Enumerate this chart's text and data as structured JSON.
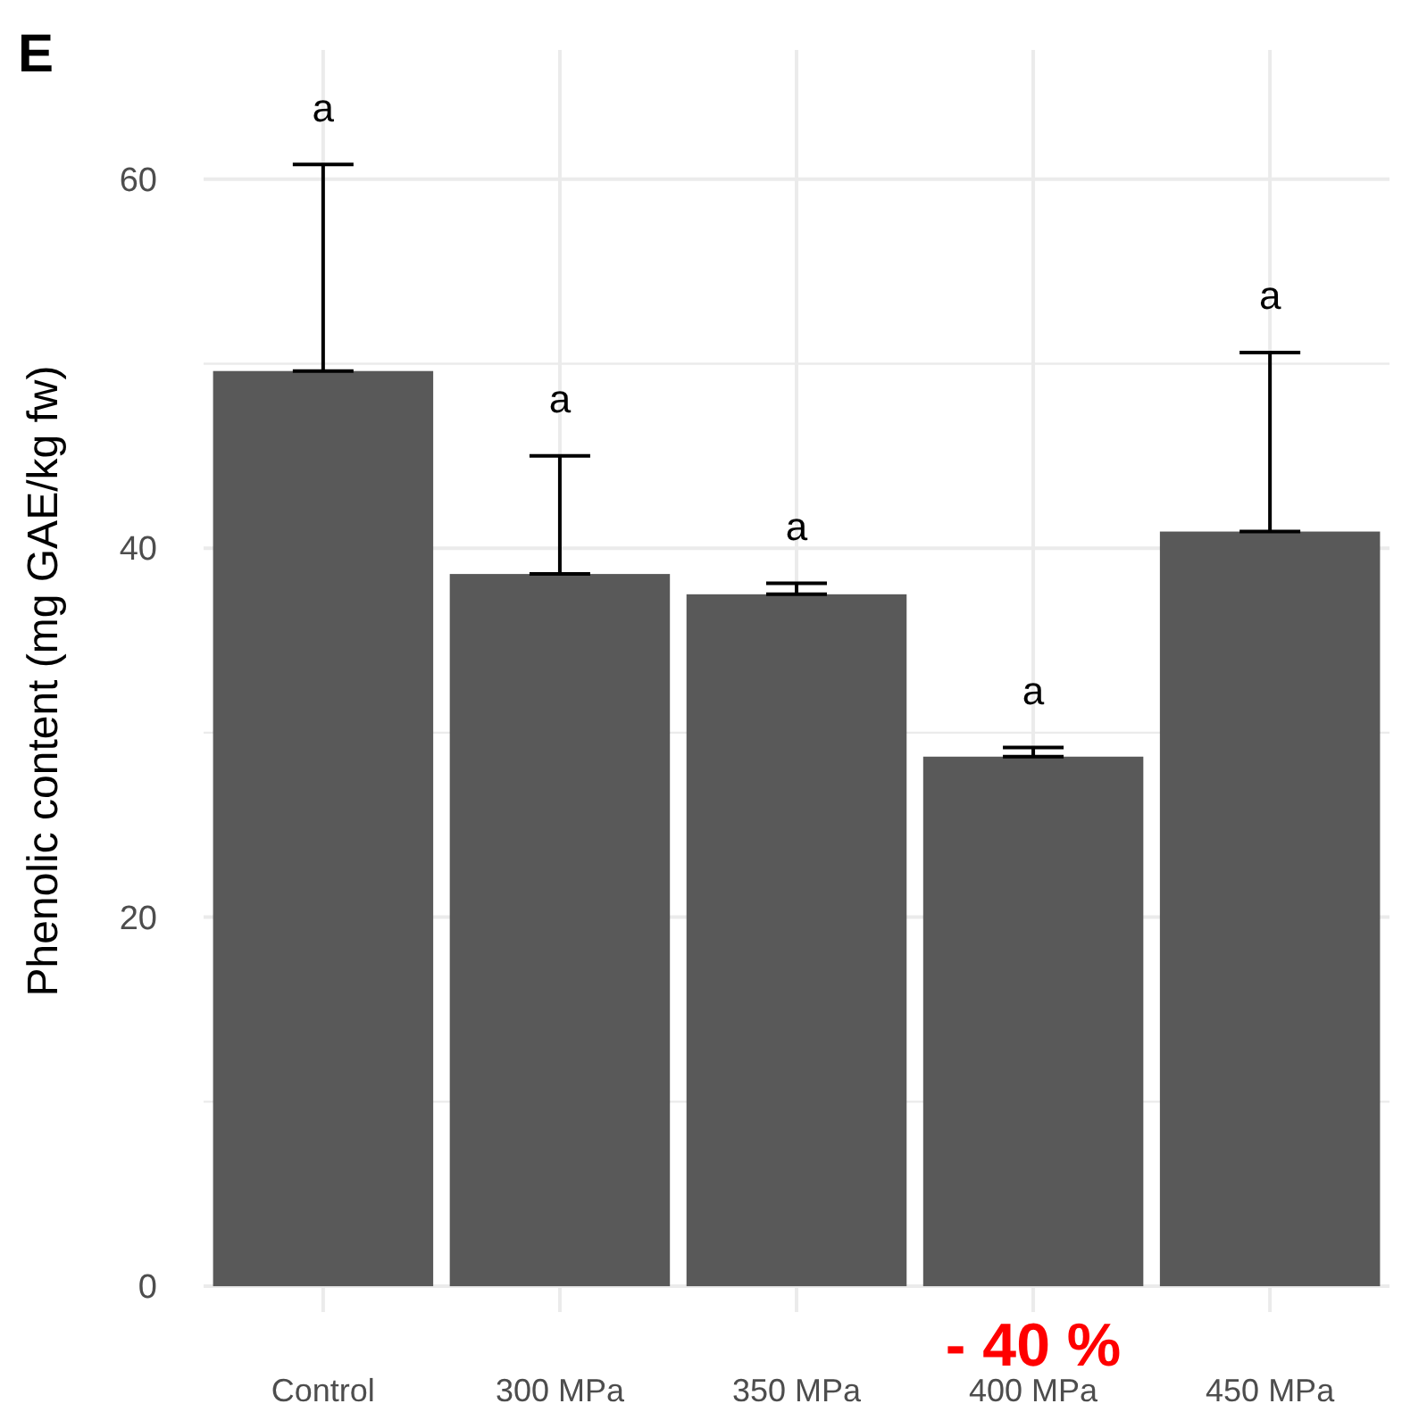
{
  "chart_data": {
    "type": "bar",
    "title": "E",
    "ylabel": "Phenolic content (mg GAE/kg fw)",
    "categories": [
      "Control",
      "300 MPa",
      "350 MPa",
      "400 MPa",
      "450 MPa"
    ],
    "values": [
      49.6,
      38.6,
      37.5,
      28.7,
      40.9
    ],
    "errors": [
      [
        49.6,
        60.8
      ],
      [
        38.6,
        45.0
      ],
      [
        37.5,
        38.1
      ],
      [
        28.7,
        29.2
      ],
      [
        40.9,
        50.6
      ]
    ],
    "color": "#595959",
    "ylim": [
      -1.4,
      67
    ],
    "yticks": [
      0,
      {
        "value": 10,
        "label": null
      },
      20,
      {
        "value": 30,
        "label": null
      },
      40,
      {
        "value": 50,
        "label": null
      },
      60
    ],
    "grid": true,
    "annotations": [
      "a",
      "a",
      "a",
      "a",
      "a",
      "- 40 %"
    ]
  }
}
